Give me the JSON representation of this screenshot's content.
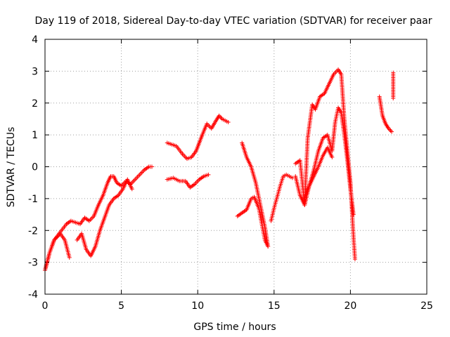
{
  "chart_data": {
    "type": "scatter",
    "title": "Day 119 of 2018, Sidereal Day-to-day VTEC variation (SDTVAR) for receiver paar",
    "xlabel": "GPS time / hours",
    "ylabel": "SDTVAR / TECUs",
    "xlim": [
      0,
      25
    ],
    "ylim": [
      -4,
      4
    ],
    "xticks": [
      0,
      5,
      10,
      15,
      20,
      25
    ],
    "yticks": [
      -4,
      -3,
      -2,
      -1,
      0,
      1,
      2,
      3,
      4
    ],
    "xtick_labels": [
      "0",
      "5",
      "10",
      "15",
      "20",
      "25"
    ],
    "ytick_labels": [
      "-4",
      "-3",
      "-2",
      "-1",
      "0",
      "1",
      "2",
      "3",
      "4"
    ],
    "grid": true,
    "marker": "+",
    "color": "#ff0000",
    "series": [
      {
        "name": "s1",
        "x": [
          0.0,
          0.3,
          0.6,
          1.0,
          1.3,
          1.6
        ],
        "y": [
          -3.25,
          -2.7,
          -2.3,
          -2.1,
          -2.3,
          -2.85
        ]
      },
      {
        "name": "s2",
        "x": [
          0.0,
          0.3,
          0.6,
          1.0,
          1.4,
          1.7,
          2.0,
          2.3,
          2.6,
          2.9,
          3.2,
          3.5,
          3.8,
          4.1,
          4.3,
          4.5,
          4.7,
          5.0,
          5.3,
          5.6,
          5.9,
          6.2,
          6.5,
          6.8,
          7.0
        ],
        "y": [
          -3.25,
          -2.7,
          -2.3,
          -2.05,
          -1.8,
          -1.7,
          -1.75,
          -1.8,
          -1.6,
          -1.7,
          -1.55,
          -1.2,
          -0.9,
          -0.5,
          -0.3,
          -0.3,
          -0.5,
          -0.6,
          -0.45,
          -0.55,
          -0.4,
          -0.25,
          -0.1,
          0.0,
          0.0
        ]
      },
      {
        "name": "s3",
        "x": [
          2.1,
          2.4,
          2.7,
          3.0,
          3.3,
          3.6,
          3.9,
          4.2,
          4.5,
          4.8,
          5.1,
          5.4,
          5.7
        ],
        "y": [
          -2.3,
          -2.1,
          -2.6,
          -2.8,
          -2.5,
          -2.0,
          -1.6,
          -1.2,
          -1.0,
          -0.9,
          -0.7,
          -0.4,
          -0.7
        ]
      },
      {
        "name": "s4",
        "x": [
          8.0,
          8.3,
          8.6,
          9.0,
          9.3,
          9.6,
          9.9,
          10.1,
          10.3,
          10.6,
          10.9,
          11.2,
          11.4,
          11.6,
          11.8,
          12.0
        ],
        "y": [
          0.75,
          0.7,
          0.65,
          0.4,
          0.25,
          0.3,
          0.5,
          0.75,
          1.0,
          1.35,
          1.2,
          1.45,
          1.6,
          1.5,
          1.45,
          1.4
        ]
      },
      {
        "name": "s5",
        "x": [
          8.0,
          8.4,
          8.8,
          9.2,
          9.5,
          9.8,
          10.1,
          10.4,
          10.7
        ],
        "y": [
          -0.4,
          -0.35,
          -0.45,
          -0.45,
          -0.65,
          -0.55,
          -0.4,
          -0.3,
          -0.25
        ]
      },
      {
        "name": "s6",
        "x": [
          12.6,
          12.9,
          13.2,
          13.5,
          13.7,
          14.0,
          14.2,
          14.4,
          14.6
        ],
        "y": [
          -1.55,
          -1.45,
          -1.35,
          -1.0,
          -0.95,
          -1.3,
          -1.8,
          -2.3,
          -2.5
        ]
      },
      {
        "name": "s7",
        "x": [
          12.9,
          13.2,
          13.5,
          13.8,
          14.1,
          14.4,
          14.6
        ],
        "y": [
          0.75,
          0.3,
          0.0,
          -0.5,
          -1.2,
          -1.9,
          -2.5
        ]
      },
      {
        "name": "s8",
        "x": [
          14.8,
          15.0,
          15.2,
          15.4,
          15.6,
          15.8,
          16.0,
          16.2
        ],
        "y": [
          -1.7,
          -1.3,
          -0.95,
          -0.6,
          -0.3,
          -0.25,
          -0.3,
          -0.35
        ]
      },
      {
        "name": "s9",
        "x": [
          16.4,
          16.7,
          17.0,
          17.2,
          17.5,
          17.7,
          18.0,
          18.3,
          18.6,
          18.9,
          19.2,
          19.4,
          19.6,
          19.8,
          20.0,
          20.2,
          20.3
        ],
        "y": [
          0.1,
          0.2,
          -1.2,
          0.9,
          1.95,
          1.8,
          2.2,
          2.3,
          2.6,
          2.9,
          3.05,
          2.9,
          1.5,
          0.5,
          -0.5,
          -2.2,
          -2.9
        ]
      },
      {
        "name": "s10",
        "x": [
          16.4,
          16.7,
          17.0,
          17.3,
          17.6,
          17.9,
          18.2,
          18.5,
          18.8,
          19.0,
          19.2,
          19.4,
          19.6,
          19.8,
          20.0,
          20.2
        ],
        "y": [
          -0.3,
          -0.9,
          -1.2,
          -0.6,
          -0.1,
          0.5,
          0.9,
          1.0,
          0.5,
          1.4,
          1.85,
          1.7,
          1.0,
          0.2,
          -0.7,
          -1.5
        ]
      },
      {
        "name": "s11",
        "x": [
          17.0,
          17.3,
          17.6,
          17.9,
          18.2,
          18.5,
          18.8
        ],
        "y": [
          -0.95,
          -0.6,
          -0.3,
          0.0,
          0.35,
          0.6,
          0.3
        ]
      },
      {
        "name": "s12",
        "x": [
          21.9,
          22.1,
          22.3,
          22.5,
          22.7
        ],
        "y": [
          2.2,
          1.6,
          1.35,
          1.2,
          1.1
        ]
      },
      {
        "name": "s13",
        "x": [
          22.8,
          22.8,
          22.8,
          22.8
        ],
        "y": [
          2.95,
          2.6,
          2.4,
          2.15
        ]
      }
    ]
  }
}
